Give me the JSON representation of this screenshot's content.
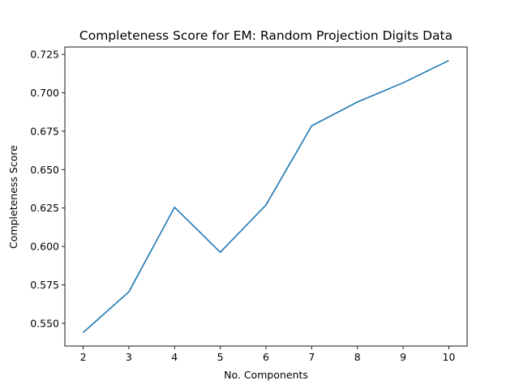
{
  "chart_data": {
    "type": "line",
    "title": "Completeness Score for EM: Random Projection Digits Data",
    "xlabel": "No. Components",
    "ylabel": "Completeness Score",
    "x": [
      2,
      3,
      4,
      5,
      6,
      7,
      8,
      9,
      10
    ],
    "xticks": [
      "2",
      "3",
      "4",
      "5",
      "6",
      "7",
      "8",
      "9",
      "10"
    ],
    "yticks": [
      "0.550",
      "0.575",
      "0.600",
      "0.625",
      "0.650",
      "0.675",
      "0.700",
      "0.725"
    ],
    "series": [
      {
        "values": [
          0.544,
          0.5705,
          0.6255,
          0.5962,
          0.627,
          0.6785,
          0.694,
          0.7065,
          0.721
        ],
        "color": "#1f77b4"
      }
    ],
    "xlim": [
      1.6,
      10.4
    ],
    "ylim": [
      0.5352,
      0.7298
    ],
    "grid": false,
    "legend": "none"
  }
}
